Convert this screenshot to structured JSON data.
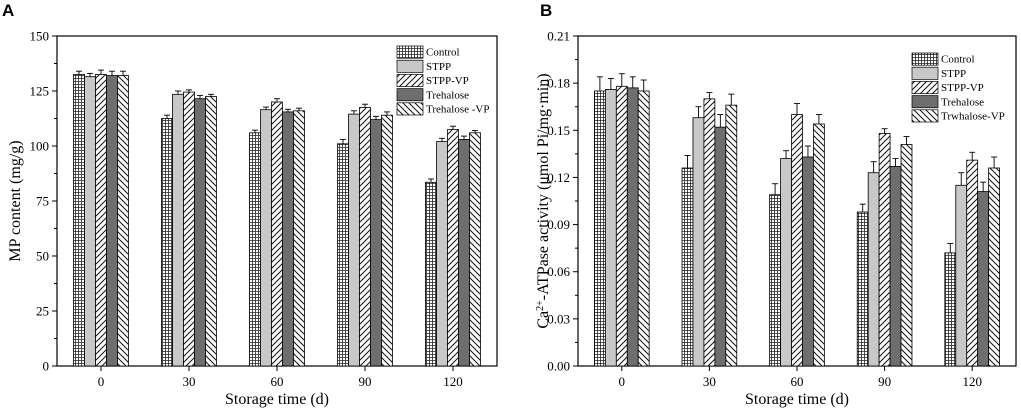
{
  "chart_data": [
    {
      "type": "bar",
      "panel_label": "A",
      "xlabel": "Storage time (d)",
      "ylabel": "MP content (mg/g)",
      "categories": [
        "0",
        "30",
        "60",
        "90",
        "120"
      ],
      "ylim": [
        0,
        150
      ],
      "yticks": [
        0,
        25,
        50,
        75,
        100,
        125,
        150
      ],
      "ytick_labels": [
        "0",
        "25",
        "50",
        "75",
        "100",
        "125",
        "150"
      ],
      "legend": "top-right",
      "series": [
        {
          "name": "Control",
          "pattern": "grid",
          "values": [
            132.5,
            112.5,
            106,
            101,
            83.5
          ],
          "errors": [
            1.5,
            1.5,
            1.2,
            2,
            1.5
          ]
        },
        {
          "name": "STPP",
          "pattern": "light",
          "values": [
            131.5,
            123.5,
            116.5,
            114.5,
            102
          ],
          "errors": [
            1.5,
            1.5,
            1.2,
            1.5,
            1.5
          ]
        },
        {
          "name": "STPP-VP",
          "pattern": "fdiag",
          "values": [
            132.5,
            124.5,
            120,
            117.5,
            107.5
          ],
          "errors": [
            2,
            1,
            1.5,
            1.5,
            1.5
          ]
        },
        {
          "name": "Trehalose",
          "pattern": "dark",
          "values": [
            132,
            121.5,
            115.5,
            112,
            103
          ],
          "errors": [
            2,
            1.5,
            1.2,
            1.5,
            1.5
          ]
        },
        {
          "name": "Trehalose -VP",
          "pattern": "bdiag",
          "values": [
            132,
            122.5,
            116,
            114,
            106
          ],
          "errors": [
            2,
            1,
            1.2,
            1.5,
            1
          ]
        }
      ]
    },
    {
      "type": "bar",
      "panel_label": "B",
      "xlabel": "Storage time (d)",
      "ylabel_main": "Ca",
      "ylabel_sup": "2+",
      "ylabel_rest": "-ATPase activity (μmol Pi/mg·min)",
      "categories": [
        "0",
        "30",
        "60",
        "90",
        "120"
      ],
      "ylim": [
        0,
        0.21
      ],
      "yticks": [
        0,
        0.03,
        0.06,
        0.09,
        0.12,
        0.15,
        0.18,
        0.21
      ],
      "ytick_labels": [
        "0.00",
        "0.03",
        "0.06",
        "0.09",
        "0.12",
        "0.15",
        "0.18",
        "0.21"
      ],
      "legend": "top-right",
      "series": [
        {
          "name": "Control",
          "pattern": "grid",
          "values": [
            0.175,
            0.126,
            0.109,
            0.098,
            0.072
          ],
          "errors": [
            0.009,
            0.008,
            0.007,
            0.005,
            0.006
          ]
        },
        {
          "name": "STPP",
          "pattern": "light",
          "values": [
            0.176,
            0.158,
            0.132,
            0.123,
            0.115
          ],
          "errors": [
            0.007,
            0.007,
            0.005,
            0.007,
            0.008
          ]
        },
        {
          "name": "STPP-VP",
          "pattern": "fdiag",
          "values": [
            0.178,
            0.17,
            0.16,
            0.148,
            0.131
          ],
          "errors": [
            0.008,
            0.004,
            0.007,
            0.003,
            0.005
          ]
        },
        {
          "name": "Trehalose",
          "pattern": "dark",
          "values": [
            0.177,
            0.152,
            0.133,
            0.127,
            0.111
          ],
          "errors": [
            0.007,
            0.008,
            0.007,
            0.005,
            0.006
          ]
        },
        {
          "name": "Trwhalose-VP",
          "pattern": "bdiag",
          "values": [
            0.175,
            0.166,
            0.154,
            0.141,
            0.126
          ],
          "errors": [
            0.007,
            0.007,
            0.006,
            0.005,
            0.007
          ]
        }
      ]
    }
  ]
}
